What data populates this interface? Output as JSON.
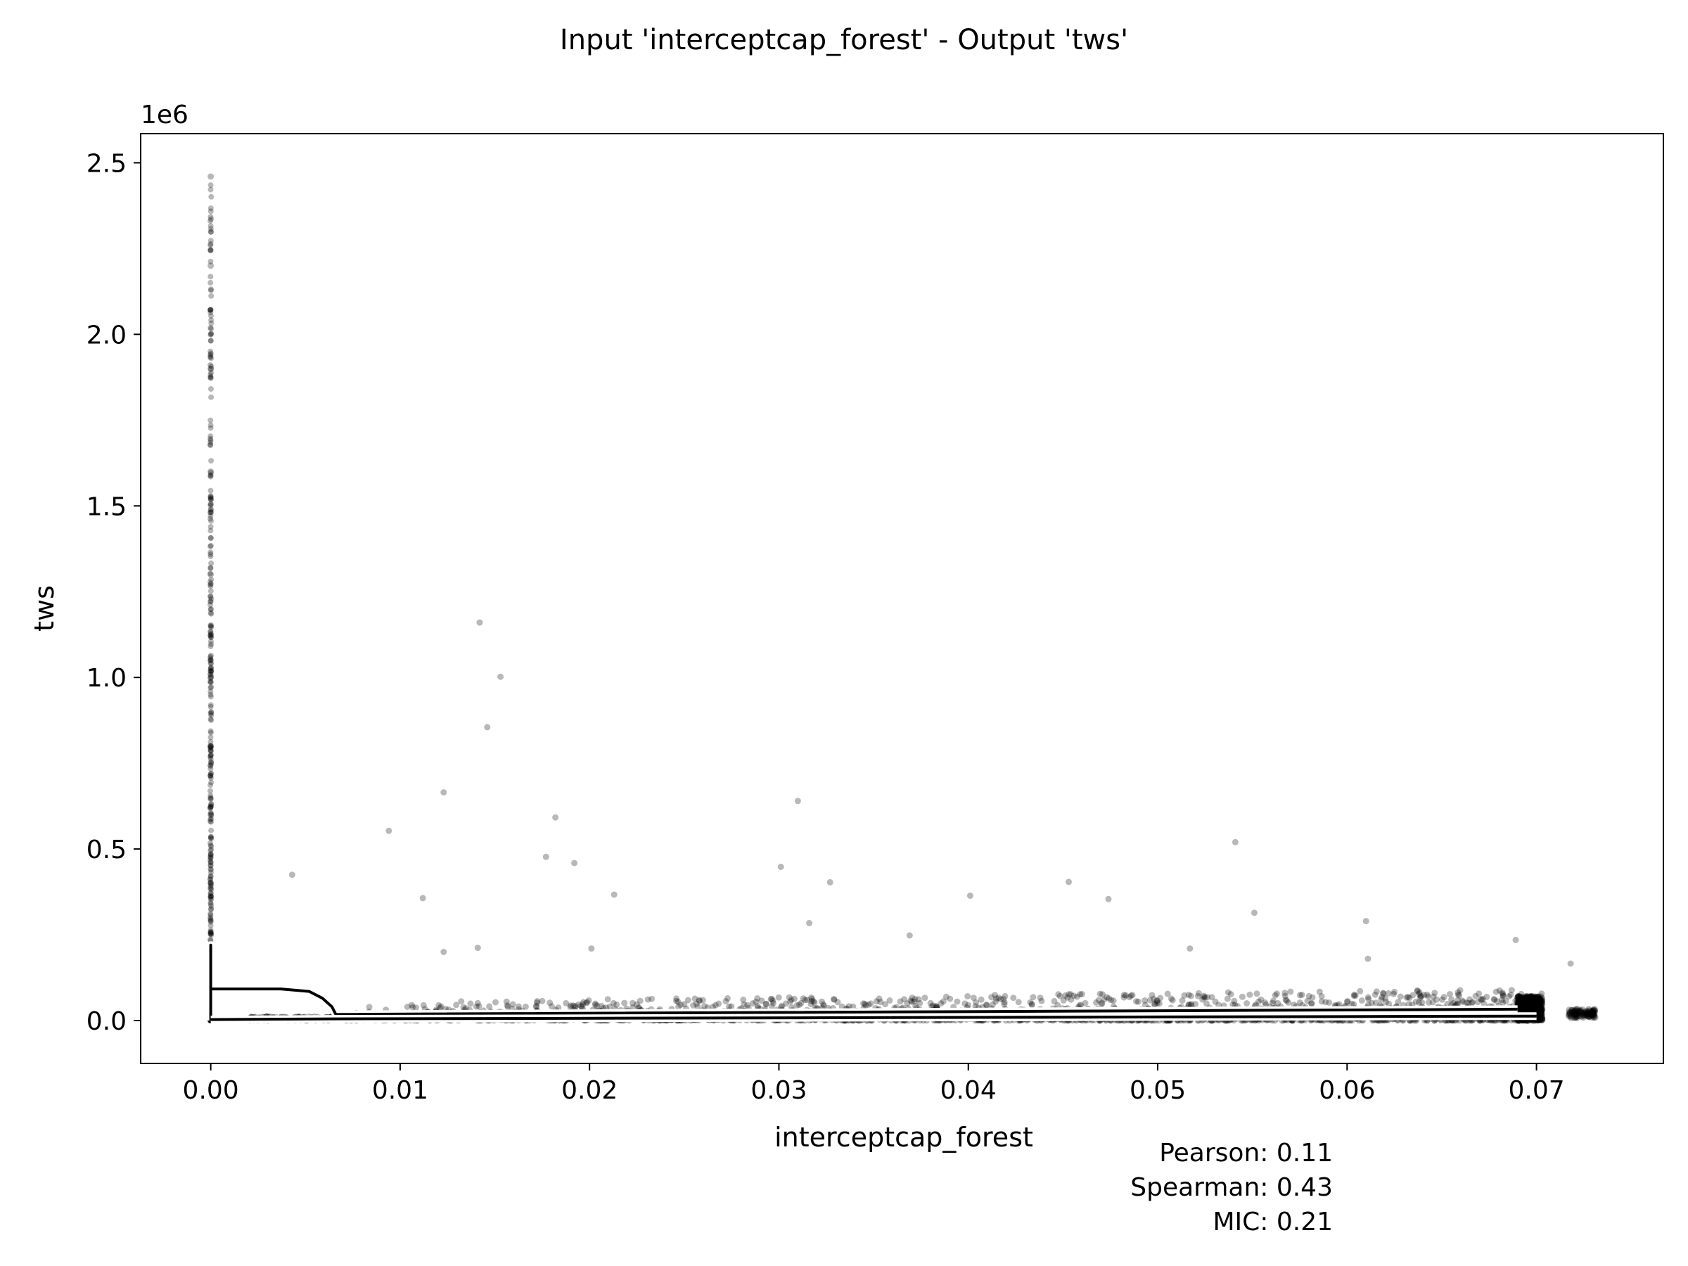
{
  "chart_data": {
    "type": "scatter",
    "title": "Input 'interceptcap_forest' - Output 'tws'",
    "xlabel": "interceptcap_forest",
    "ylabel": "tws",
    "y_offset_label": "1e6",
    "xlim": [
      -0.0037,
      0.0767
    ],
    "ylim": [
      -0.125,
      2.585
    ],
    "x_ticks": [
      0.0,
      0.01,
      0.02,
      0.03,
      0.04,
      0.05,
      0.06,
      0.07
    ],
    "x_tick_labels": [
      "0.00",
      "0.01",
      "0.02",
      "0.03",
      "0.04",
      "0.05",
      "0.06",
      "0.07"
    ],
    "y_ticks": [
      0.0,
      0.5,
      1.0,
      1.5,
      2.0,
      2.5
    ],
    "y_tick_labels": [
      "0.0",
      "0.5",
      "1.0",
      "1.5",
      "2.0",
      "2.5"
    ],
    "grid": false,
    "point_color": "#000000",
    "point_opacity": 0.28,
    "notable_points": [
      {
        "x": 0.0,
        "y": 2.46
      },
      {
        "x": 0.0,
        "y": 2.2
      },
      {
        "x": 0.0,
        "y": 1.9
      },
      {
        "x": 0.0,
        "y": 1.6
      },
      {
        "x": 0.0,
        "y": 1.3
      },
      {
        "x": 0.0,
        "y": 1.0
      },
      {
        "x": 0.0,
        "y": 0.8
      },
      {
        "x": 0.0,
        "y": 0.6
      },
      {
        "x": 0.0,
        "y": 0.4
      },
      {
        "x": 0.0043,
        "y": 0.425
      },
      {
        "x": 0.0094,
        "y": 0.553
      },
      {
        "x": 0.0112,
        "y": 0.357
      },
      {
        "x": 0.0123,
        "y": 0.665
      },
      {
        "x": 0.0142,
        "y": 1.16
      },
      {
        "x": 0.0146,
        "y": 0.855
      },
      {
        "x": 0.0153,
        "y": 1.002
      },
      {
        "x": 0.0177,
        "y": 0.477
      },
      {
        "x": 0.0182,
        "y": 0.592
      },
      {
        "x": 0.0192,
        "y": 0.459
      },
      {
        "x": 0.0213,
        "y": 0.367
      },
      {
        "x": 0.0301,
        "y": 0.448
      },
      {
        "x": 0.031,
        "y": 0.64
      },
      {
        "x": 0.0327,
        "y": 0.403
      },
      {
        "x": 0.0316,
        "y": 0.284
      },
      {
        "x": 0.0369,
        "y": 0.248
      },
      {
        "x": 0.0401,
        "y": 0.364
      },
      {
        "x": 0.0453,
        "y": 0.404
      },
      {
        "x": 0.0474,
        "y": 0.354
      },
      {
        "x": 0.0541,
        "y": 0.52
      },
      {
        "x": 0.0551,
        "y": 0.314
      },
      {
        "x": 0.061,
        "y": 0.29
      },
      {
        "x": 0.0689,
        "y": 0.235
      },
      {
        "x": 0.0718,
        "y": 0.166
      },
      {
        "x": 0.0123,
        "y": 0.2
      },
      {
        "x": 0.0141,
        "y": 0.212
      },
      {
        "x": 0.0201,
        "y": 0.21
      },
      {
        "x": 0.0517,
        "y": 0.21
      },
      {
        "x": 0.0611,
        "y": 0.18
      }
    ],
    "trend_upper": {
      "x": [
        0.0,
        0.0,
        0.0,
        0.0037,
        0.0052,
        0.0059,
        0.0064,
        0.0066,
        0.0068,
        0.069,
        0.069
      ],
      "y": [
        0.0,
        0.22,
        0.092,
        0.092,
        0.085,
        0.065,
        0.04,
        0.018,
        0.018,
        0.033,
        0.033
      ]
    },
    "trend_lower": {
      "x": [
        0.0,
        0.0066,
        0.07
      ],
      "y": [
        0.003,
        0.005,
        0.013
      ]
    },
    "stats": {
      "pearson": "Pearson: 0.11",
      "spearman": "Spearman: 0.43",
      "mic": "MIC: 0.21"
    }
  }
}
